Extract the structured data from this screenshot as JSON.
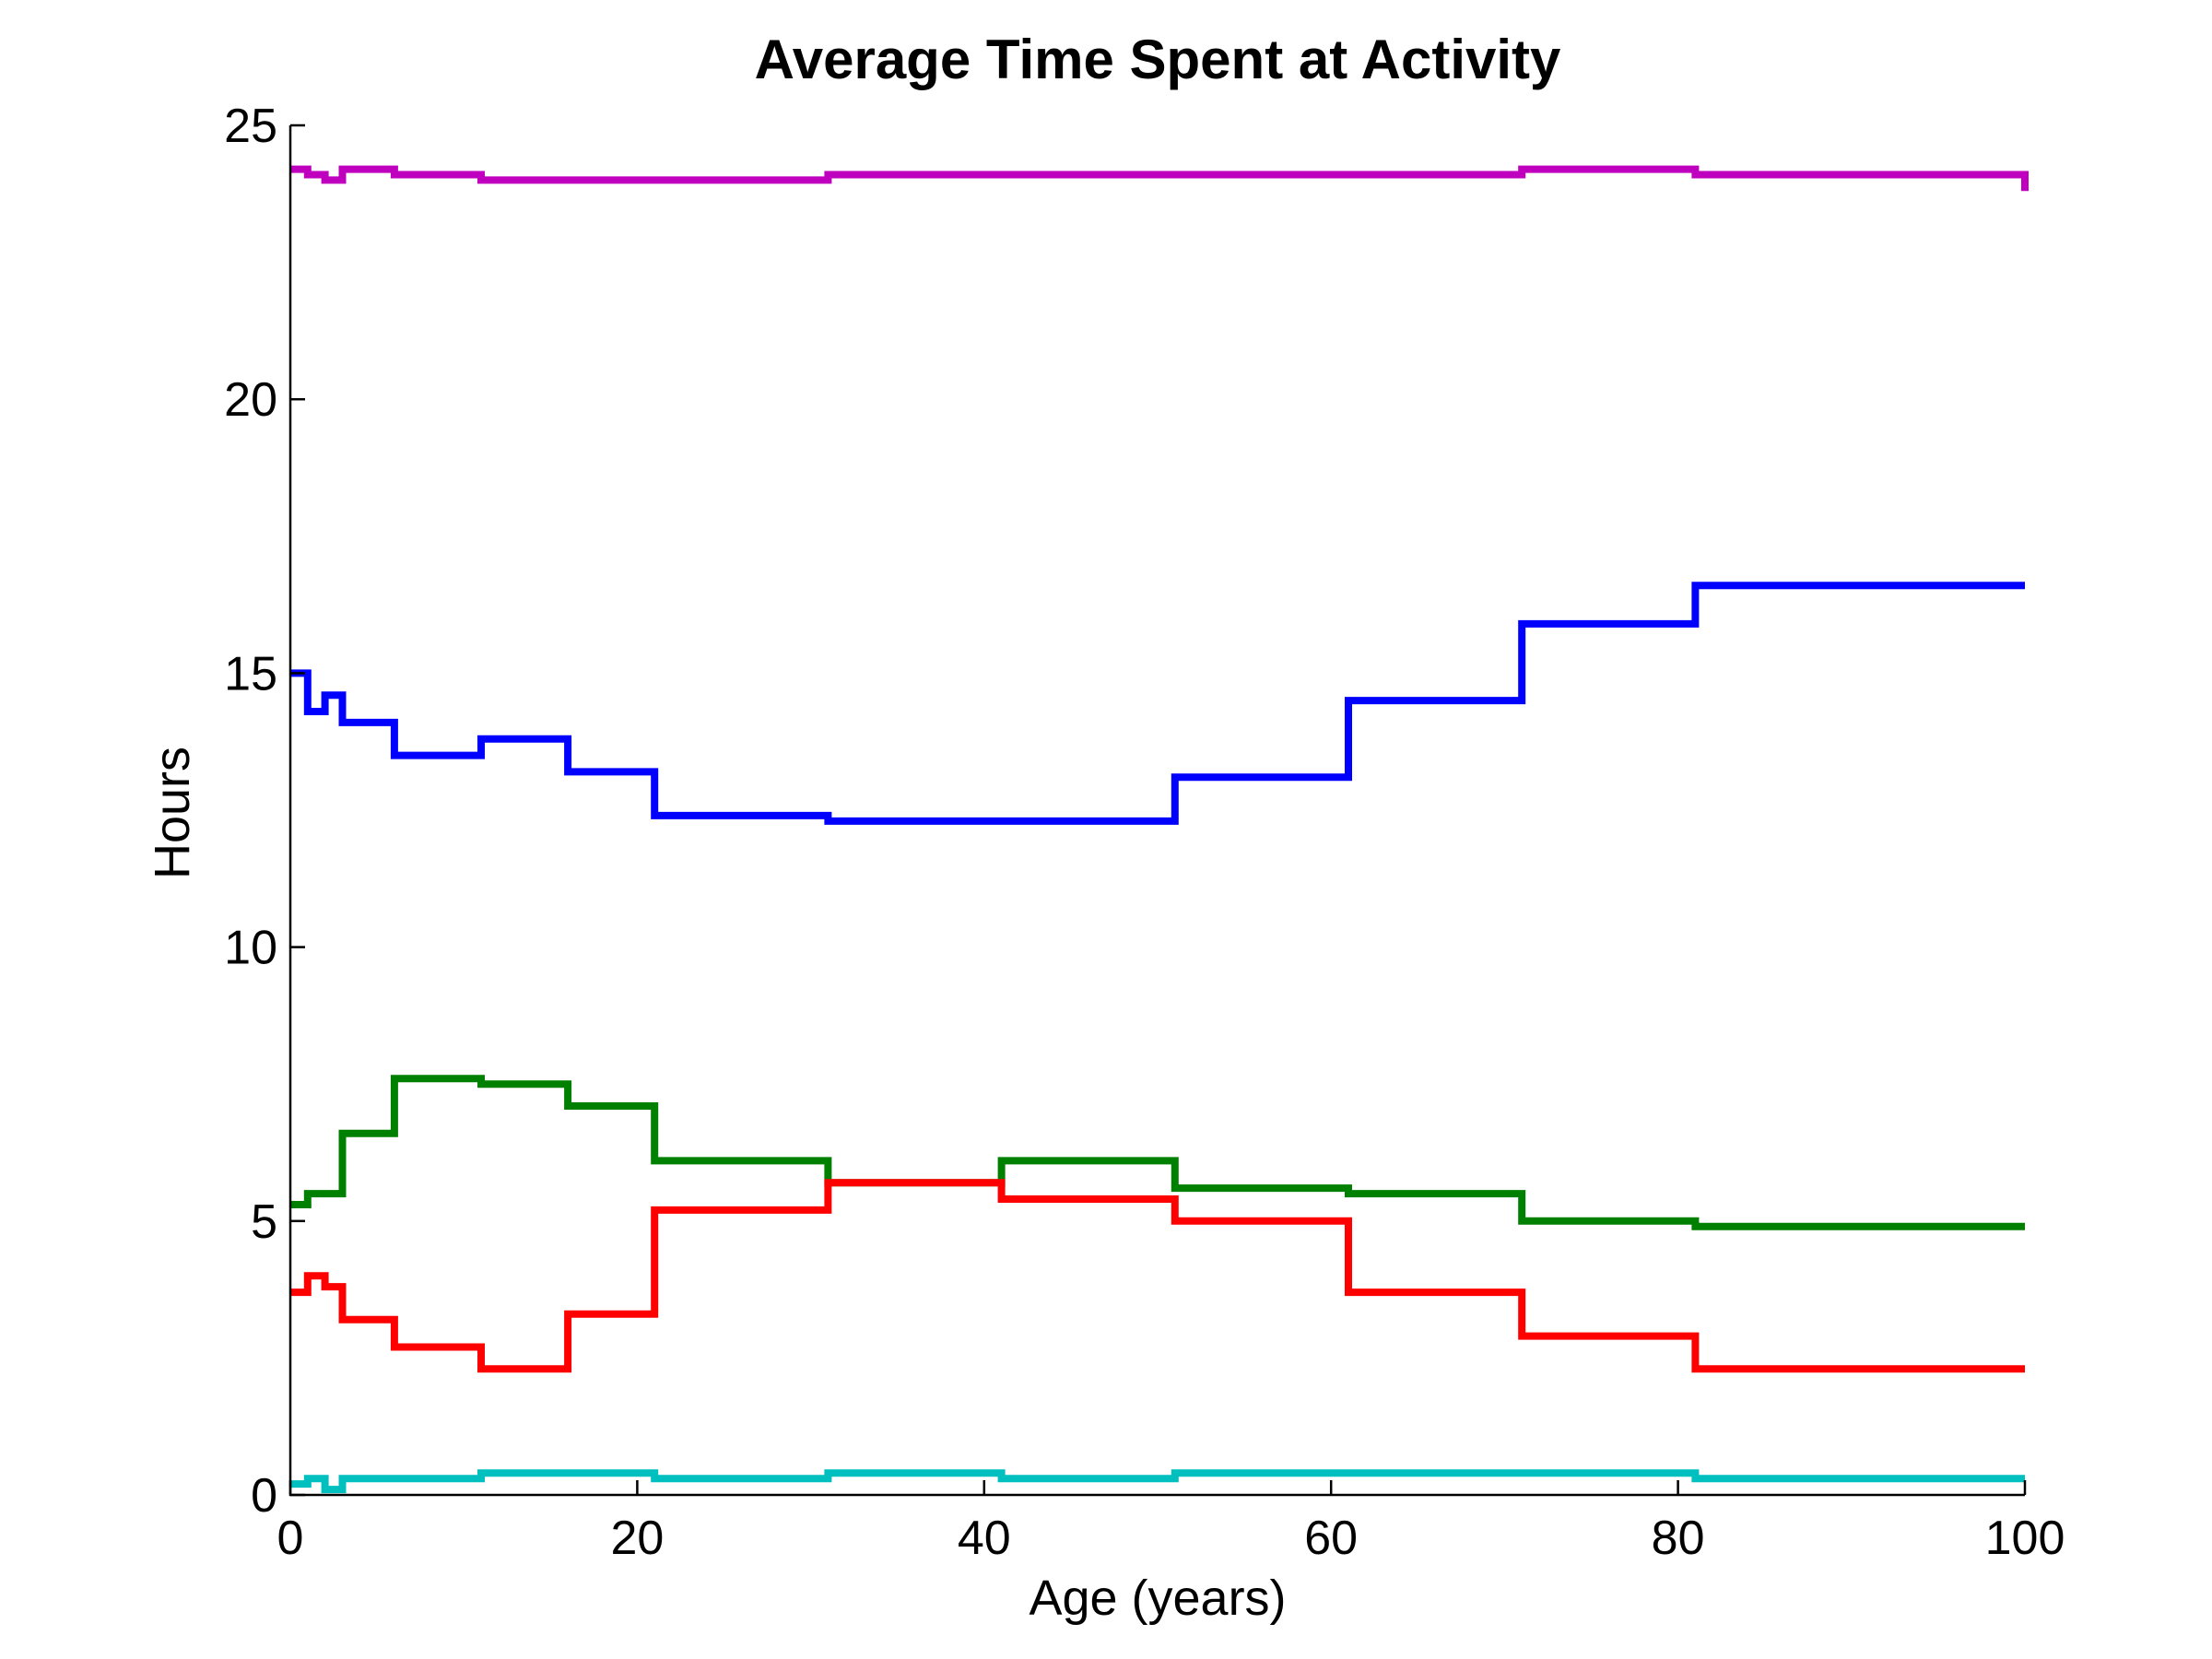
{
  "chart_data": {
    "type": "line",
    "title": "Average Time Spent at Activity",
    "xlabel": "Age (years)",
    "ylabel": "Hours",
    "xlim": [
      0,
      100
    ],
    "ylim": [
      0,
      25
    ],
    "x_ticks": [
      0,
      20,
      40,
      60,
      80,
      100
    ],
    "y_ticks": [
      0,
      5,
      10,
      15,
      20,
      25
    ],
    "step": true,
    "grid": false,
    "series": [
      {
        "color": "#bf00bf",
        "x": [
          0,
          1,
          2,
          3,
          6,
          11,
          16,
          21,
          31,
          41,
          51,
          61,
          71,
          81,
          100
        ],
        "y": [
          24.2,
          24.1,
          24.0,
          24.2,
          24.1,
          24.0,
          24.0,
          24.0,
          24.1,
          24.1,
          24.1,
          24.1,
          24.2,
          24.1,
          23.8
        ]
      },
      {
        "color": "#0000ff",
        "x": [
          0,
          1,
          2,
          3,
          6,
          11,
          16,
          21,
          31,
          41,
          51,
          61,
          71,
          81,
          100
        ],
        "y": [
          15.0,
          14.3,
          14.6,
          14.1,
          13.5,
          13.8,
          13.2,
          12.4,
          12.3,
          12.3,
          13.1,
          14.5,
          15.9,
          16.6,
          16.6
        ]
      },
      {
        "color": "#008000",
        "x": [
          0,
          1,
          2,
          3,
          6,
          11,
          16,
          21,
          31,
          41,
          51,
          61,
          71,
          81,
          100
        ],
        "y": [
          5.3,
          5.5,
          5.5,
          6.6,
          7.6,
          7.5,
          7.1,
          6.1,
          5.7,
          6.1,
          5.6,
          5.5,
          5.0,
          4.9,
          4.9
        ]
      },
      {
        "color": "#ff0000",
        "x": [
          0,
          1,
          2,
          3,
          6,
          11,
          16,
          21,
          31,
          41,
          51,
          61,
          71,
          81,
          100
        ],
        "y": [
          3.7,
          4.0,
          3.8,
          3.2,
          2.7,
          2.3,
          3.3,
          5.2,
          5.7,
          5.4,
          5.0,
          3.7,
          2.9,
          2.3,
          2.3
        ]
      },
      {
        "color": "#00bfbf",
        "x": [
          0,
          1,
          2,
          3,
          6,
          11,
          16,
          21,
          31,
          41,
          51,
          61,
          71,
          81,
          100
        ],
        "y": [
          0.2,
          0.3,
          0.1,
          0.3,
          0.3,
          0.4,
          0.4,
          0.3,
          0.4,
          0.3,
          0.4,
          0.4,
          0.4,
          0.3,
          0.3
        ]
      }
    ]
  }
}
